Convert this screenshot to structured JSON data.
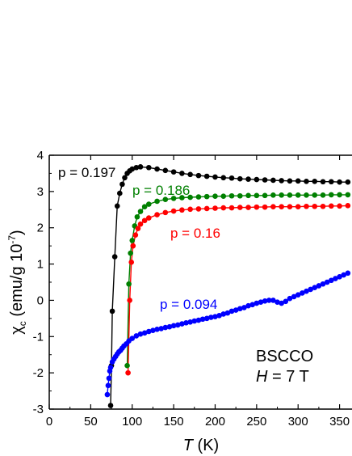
{
  "chart_data": {
    "type": "scatter",
    "xlabel": {
      "italic": "T",
      "rest": " (K)"
    },
    "ylabel": {
      "chi": "χ",
      "sub": "c",
      "mid": " (emu/g 10",
      "sup": "-7",
      "end": ")"
    },
    "xlim": [
      0,
      365
    ],
    "ylim": [
      -3,
      4
    ],
    "xticks": [
      0,
      50,
      100,
      150,
      200,
      250,
      300,
      350
    ],
    "yticks": [
      -3,
      -2,
      -1,
      0,
      1,
      2,
      3,
      4
    ],
    "grid": false,
    "annotation": {
      "line1": "BSCCO",
      "line2_italic": "H",
      "line2_rest": " = 7 T"
    },
    "series": [
      {
        "name": "p = 0.197",
        "color": "#000000",
        "points": [
          [
            74,
            -2.9
          ],
          [
            75,
            -1.8
          ],
          [
            76,
            -0.3
          ],
          [
            79,
            1.2
          ],
          [
            82,
            2.6
          ],
          [
            85,
            2.95
          ],
          [
            88,
            3.2
          ],
          [
            91,
            3.38
          ],
          [
            94,
            3.5
          ],
          [
            97,
            3.57
          ],
          [
            100,
            3.62
          ],
          [
            105,
            3.66
          ],
          [
            110,
            3.68
          ],
          [
            120,
            3.66
          ],
          [
            130,
            3.62
          ],
          [
            140,
            3.58
          ],
          [
            150,
            3.54
          ],
          [
            160,
            3.5
          ],
          [
            170,
            3.47
          ],
          [
            180,
            3.44
          ],
          [
            190,
            3.42
          ],
          [
            200,
            3.4
          ],
          [
            210,
            3.38
          ],
          [
            220,
            3.37
          ],
          [
            230,
            3.35
          ],
          [
            240,
            3.34
          ],
          [
            250,
            3.33
          ],
          [
            260,
            3.32
          ],
          [
            270,
            3.31
          ],
          [
            280,
            3.3
          ],
          [
            290,
            3.29
          ],
          [
            300,
            3.29
          ],
          [
            310,
            3.28
          ],
          [
            320,
            3.28
          ],
          [
            330,
            3.27
          ],
          [
            340,
            3.27
          ],
          [
            350,
            3.26
          ],
          [
            360,
            3.26
          ]
        ]
      },
      {
        "name": "p = 0.186",
        "color": "#008000",
        "points": [
          [
            94,
            -1.8
          ],
          [
            96,
            0.45
          ],
          [
            98,
            1.3
          ],
          [
            100,
            1.65
          ],
          [
            103,
            2.05
          ],
          [
            106,
            2.3
          ],
          [
            110,
            2.45
          ],
          [
            115,
            2.58
          ],
          [
            120,
            2.65
          ],
          [
            130,
            2.73
          ],
          [
            140,
            2.78
          ],
          [
            150,
            2.81
          ],
          [
            160,
            2.83
          ],
          [
            170,
            2.84
          ],
          [
            180,
            2.85
          ],
          [
            190,
            2.86
          ],
          [
            200,
            2.87
          ],
          [
            210,
            2.87
          ],
          [
            220,
            2.88
          ],
          [
            230,
            2.88
          ],
          [
            240,
            2.89
          ],
          [
            250,
            2.89
          ],
          [
            260,
            2.89
          ],
          [
            270,
            2.9
          ],
          [
            280,
            2.9
          ],
          [
            290,
            2.9
          ],
          [
            300,
            2.9
          ],
          [
            310,
            2.9
          ],
          [
            320,
            2.9
          ],
          [
            330,
            2.9
          ],
          [
            340,
            2.91
          ],
          [
            350,
            2.91
          ],
          [
            360,
            2.91
          ]
        ]
      },
      {
        "name": "p = 0.16",
        "color": "#ff0000",
        "points": [
          [
            95,
            -2.0
          ],
          [
            97,
            0.0
          ],
          [
            99,
            1.05
          ],
          [
            101,
            1.5
          ],
          [
            104,
            1.8
          ],
          [
            107,
            1.98
          ],
          [
            110,
            2.1
          ],
          [
            115,
            2.2
          ],
          [
            120,
            2.27
          ],
          [
            130,
            2.36
          ],
          [
            140,
            2.42
          ],
          [
            150,
            2.46
          ],
          [
            160,
            2.49
          ],
          [
            170,
            2.51
          ],
          [
            180,
            2.52
          ],
          [
            190,
            2.53
          ],
          [
            200,
            2.54
          ],
          [
            210,
            2.55
          ],
          [
            220,
            2.55
          ],
          [
            230,
            2.56
          ],
          [
            240,
            2.56
          ],
          [
            250,
            2.57
          ],
          [
            260,
            2.57
          ],
          [
            270,
            2.58
          ],
          [
            280,
            2.58
          ],
          [
            290,
            2.58
          ],
          [
            300,
            2.58
          ],
          [
            310,
            2.59
          ],
          [
            320,
            2.59
          ],
          [
            330,
            2.59
          ],
          [
            340,
            2.6
          ],
          [
            350,
            2.6
          ],
          [
            360,
            2.61
          ]
        ]
      },
      {
        "name": "p = 0.094",
        "color": "#0000ff",
        "points": [
          [
            70,
            -2.6
          ],
          [
            71,
            -2.35
          ],
          [
            72,
            -2.15
          ],
          [
            73,
            -1.95
          ],
          [
            74,
            -1.85
          ],
          [
            76,
            -1.7
          ],
          [
            78,
            -1.62
          ],
          [
            80,
            -1.55
          ],
          [
            82,
            -1.48
          ],
          [
            84,
            -1.42
          ],
          [
            86,
            -1.38
          ],
          [
            88,
            -1.32
          ],
          [
            90,
            -1.26
          ],
          [
            93,
            -1.2
          ],
          [
            96,
            -1.12
          ],
          [
            100,
            -1.05
          ],
          [
            105,
            -0.98
          ],
          [
            110,
            -0.93
          ],
          [
            115,
            -0.9
          ],
          [
            120,
            -0.86
          ],
          [
            125,
            -0.83
          ],
          [
            130,
            -0.8
          ],
          [
            135,
            -0.78
          ],
          [
            140,
            -0.75
          ],
          [
            145,
            -0.73
          ],
          [
            150,
            -0.7
          ],
          [
            155,
            -0.68
          ],
          [
            160,
            -0.65
          ],
          [
            165,
            -0.62
          ],
          [
            170,
            -0.6
          ],
          [
            175,
            -0.57
          ],
          [
            180,
            -0.55
          ],
          [
            185,
            -0.52
          ],
          [
            190,
            -0.5
          ],
          [
            195,
            -0.47
          ],
          [
            200,
            -0.45
          ],
          [
            205,
            -0.42
          ],
          [
            210,
            -0.38
          ],
          [
            215,
            -0.35
          ],
          [
            220,
            -0.3
          ],
          [
            225,
            -0.27
          ],
          [
            230,
            -0.23
          ],
          [
            235,
            -0.2
          ],
          [
            240,
            -0.15
          ],
          [
            245,
            -0.12
          ],
          [
            250,
            -0.08
          ],
          [
            255,
            -0.05
          ],
          [
            260,
            -0.02
          ],
          [
            265,
            0.0
          ],
          [
            270,
            0.0
          ],
          [
            275,
            -0.05
          ],
          [
            280,
            -0.08
          ],
          [
            285,
            -0.03
          ],
          [
            290,
            0.05
          ],
          [
            295,
            0.1
          ],
          [
            300,
            0.15
          ],
          [
            305,
            0.2
          ],
          [
            310,
            0.25
          ],
          [
            315,
            0.3
          ],
          [
            320,
            0.35
          ],
          [
            325,
            0.4
          ],
          [
            330,
            0.45
          ],
          [
            335,
            0.5
          ],
          [
            340,
            0.55
          ],
          [
            345,
            0.6
          ],
          [
            350,
            0.65
          ],
          [
            355,
            0.7
          ],
          [
            360,
            0.75
          ]
        ]
      }
    ]
  }
}
